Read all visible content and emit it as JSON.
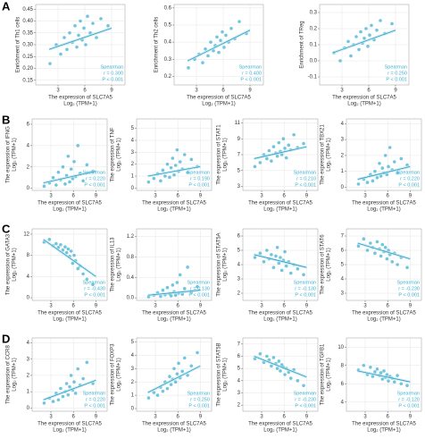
{
  "panel_labels": [
    "A",
    "B",
    "C",
    "D"
  ],
  "chart_data": [
    {
      "type": "scatter",
      "color": "#4db8d6",
      "ylabel": [
        "Enrichment of Th1 cells"
      ],
      "xlabel": [
        "The expression of SLC7A5",
        "Log₂ (TPM+1)"
      ],
      "annotations": [
        "Spearman",
        "r = 0.300",
        "P < 0.001"
      ],
      "grid": true,
      "xlim": [
        0.5,
        10.5
      ],
      "xticks": [
        3,
        6,
        9
      ],
      "ylim": [
        0.13,
        0.47
      ],
      "yticks": [
        0.15,
        {
          "value": 0.2,
          "label": "0.20"
        },
        0.25,
        {
          "value": 0.3,
          "label": "0.30"
        },
        0.35,
        {
          "value": 0.4,
          "label": "0.40"
        },
        0.45
      ],
      "x": [
        2.1,
        2.8,
        3.3,
        3.7,
        4.0,
        4.3,
        4.6,
        4.9,
        5.1,
        5.3,
        5.5,
        5.7,
        5.9,
        6.1,
        6.3,
        6.6,
        6.9,
        7.3,
        7.8,
        8.6
      ],
      "values": [
        0.22,
        0.3,
        0.26,
        0.33,
        0.28,
        0.35,
        0.31,
        0.38,
        0.29,
        0.34,
        0.4,
        0.32,
        0.37,
        0.3,
        0.42,
        0.35,
        0.39,
        0.33,
        0.41,
        0.38
      ],
      "trend": {
        "x": [
          2,
          9
        ],
        "y": [
          0.28,
          0.37
        ]
      }
    },
    {
      "type": "scatter",
      "color": "#4db8d6",
      "ylabel": [
        "Enrichment of Th2 cells"
      ],
      "xlabel": [
        "The expression of SLC7A5",
        "Log₂ (TPM+1)"
      ],
      "annotations": [
        "Spearman",
        "r = 0.400",
        "P < 0.001"
      ],
      "grid": true,
      "xlim": [
        0.5,
        10.5
      ],
      "xticks": [
        3,
        6,
        9
      ],
      "ylim": [
        0.15,
        0.62
      ],
      "yticks": [
        0.2,
        0.3,
        0.4,
        0.5,
        0.6
      ],
      "x": [
        2.1,
        2.8,
        3.3,
        3.7,
        4.0,
        4.3,
        4.6,
        4.9,
        5.1,
        5.3,
        5.5,
        5.7,
        5.9,
        6.1,
        6.3,
        6.6,
        6.9,
        7.3,
        7.8,
        8.6
      ],
      "values": [
        0.25,
        0.3,
        0.33,
        0.28,
        0.36,
        0.32,
        0.4,
        0.35,
        0.38,
        0.43,
        0.34,
        0.41,
        0.46,
        0.37,
        0.44,
        0.4,
        0.48,
        0.42,
        0.52,
        0.45
      ],
      "trend": {
        "x": [
          2,
          9
        ],
        "y": [
          0.29,
          0.47
        ]
      }
    },
    {
      "type": "scatter",
      "color": "#4db8d6",
      "ylabel": [
        "Enrichment of TReg"
      ],
      "xlabel": [
        "The expression of SLC7A5",
        "Log₂ (TPM+1)"
      ],
      "annotations": [
        "Spearman",
        "r = 0.250",
        "P < 0.001"
      ],
      "grid": true,
      "xlim": [
        0.5,
        10.5
      ],
      "xticks": [
        3,
        6,
        9
      ],
      "ylim": [
        -0.15,
        0.35
      ],
      "yticks": [
        -0.1,
        {
          "value": 0,
          "label": "0.0"
        },
        0.1,
        0.2,
        0.3
      ],
      "x": [
        2.1,
        2.8,
        3.3,
        3.7,
        4.0,
        4.3,
        4.6,
        4.9,
        5.1,
        5.3,
        5.5,
        5.7,
        5.9,
        6.1,
        6.3,
        6.6,
        6.9,
        7.3,
        7.8,
        8.6
      ],
      "values": [
        0.05,
        0.0,
        0.08,
        0.12,
        0.03,
        0.1,
        0.15,
        0.07,
        0.18,
        0.11,
        0.14,
        0.2,
        0.09,
        0.16,
        0.22,
        0.13,
        0.19,
        0.25,
        0.17,
        0.23
      ],
      "trend": {
        "x": [
          2,
          9
        ],
        "y": [
          0.05,
          0.19
        ]
      }
    },
    {
      "type": "scatter",
      "color": "#4db8d6",
      "ylabel": [
        "The expression of IFNG",
        "Log₂ (TPM+1)"
      ],
      "xlabel": [
        "The expression of SLC7A5",
        "Log₂ (TPM+1)"
      ],
      "annotations": [
        "Spearman",
        "r = 0.220",
        "P < 0.001"
      ],
      "grid": true,
      "xlim": [
        0.5,
        10.5
      ],
      "xticks": [
        3,
        6,
        9
      ],
      "ylim": [
        -0.2,
        6.5
      ],
      "yticks": [
        0,
        2,
        4,
        6
      ],
      "x": [
        2.1,
        2.8,
        3.3,
        3.7,
        4.0,
        4.3,
        4.6,
        4.9,
        5.1,
        5.3,
        5.5,
        5.7,
        5.9,
        6.1,
        6.3,
        6.6,
        6.9,
        7.3,
        7.8,
        8.6
      ],
      "values": [
        0.2,
        0.5,
        1.0,
        0.3,
        1.5,
        0.8,
        2.0,
        0.4,
        1.2,
        3.0,
        0.6,
        1.8,
        0.9,
        2.5,
        1.1,
        4.0,
        1.4,
        0.7,
        2.2,
        1.6
      ],
      "trend": {
        "x": [
          2,
          9
        ],
        "y": [
          0.5,
          1.6
        ]
      }
    },
    {
      "type": "scatter",
      "color": "#4db8d6",
      "ylabel": [
        "The expression of TNF",
        "Log₂ (TPM+1)"
      ],
      "xlabel": [
        "The expression of SLC7A5",
        "Log₂ (TPM+1)"
      ],
      "annotations": [
        "Spearman",
        "r = 0.190",
        "P < 0.001"
      ],
      "grid": true,
      "xlim": [
        0.5,
        10.5
      ],
      "xticks": [
        3,
        6,
        9
      ],
      "ylim": [
        -0.2,
        5.8
      ],
      "yticks": [
        0,
        1,
        2,
        3,
        4,
        5
      ],
      "x": [
        2.1,
        2.8,
        3.3,
        3.7,
        4.0,
        4.3,
        4.6,
        4.9,
        5.1,
        5.3,
        5.5,
        5.7,
        5.9,
        6.1,
        6.3,
        6.6,
        6.9,
        7.3,
        7.8,
        8.6
      ],
      "values": [
        0.5,
        0.8,
        1.2,
        0.6,
        1.5,
        1.0,
        2.0,
        0.9,
        1.7,
        2.5,
        1.1,
        1.9,
        3.2,
        1.4,
        2.2,
        1.6,
        2.8,
        1.3,
        2.4,
        1.8
      ],
      "trend": {
        "x": [
          2,
          9
        ],
        "y": [
          1.0,
          1.8
        ]
      }
    },
    {
      "type": "scatter",
      "color": "#4db8d6",
      "ylabel": [
        "The expression of STAT1",
        "Log₂ (TPM+1)"
      ],
      "xlabel": [
        "The expression of SLC7A5",
        "Log₂ (TPM+1)"
      ],
      "annotations": [
        "Spearman",
        "r = 0.210",
        "P < 0.001"
      ],
      "grid": true,
      "xlim": [
        0.5,
        10.5
      ],
      "xticks": [
        3,
        6,
        9
      ],
      "ylim": [
        2.5,
        11.5
      ],
      "yticks": [
        3,
        5,
        7,
        9,
        11
      ],
      "x": [
        2.1,
        2.8,
        3.3,
        3.7,
        4.0,
        4.3,
        4.6,
        4.9,
        5.1,
        5.3,
        5.5,
        5.7,
        5.9,
        6.1,
        6.3,
        6.6,
        6.9,
        7.3,
        7.8,
        8.6
      ],
      "values": [
        5.5,
        6.0,
        7.0,
        6.5,
        7.5,
        6.2,
        8.0,
        7.2,
        6.8,
        8.5,
        7.4,
        7.0,
        9.0,
        7.8,
        6.6,
        8.2,
        7.6,
        9.5,
        7.9,
        8.4
      ],
      "trend": {
        "x": [
          2,
          9
        ],
        "y": [
          6.5,
          8.0
        ]
      }
    },
    {
      "type": "scatter",
      "color": "#4db8d6",
      "ylabel": [
        "The expression of TBX21",
        "Log₂ (TPM+1)"
      ],
      "xlabel": [
        "The expression of SLC7A5",
        "Log₂ (TPM+1)"
      ],
      "annotations": [
        "Spearman",
        "r = 0.220",
        "P < 0.001"
      ],
      "grid": true,
      "xlim": [
        0.5,
        10.5
      ],
      "xticks": [
        3,
        6,
        9
      ],
      "ylim": [
        -0.2,
        4.3
      ],
      "yticks": [
        0,
        1,
        2,
        3,
        4
      ],
      "x": [
        2.1,
        2.8,
        3.3,
        3.7,
        4.0,
        4.3,
        4.6,
        4.9,
        5.1,
        5.3,
        5.5,
        5.7,
        5.9,
        6.1,
        6.3,
        6.6,
        6.9,
        7.3,
        7.8,
        8.6
      ],
      "values": [
        0.2,
        0.5,
        0.3,
        0.8,
        0.4,
        1.0,
        0.6,
        1.5,
        0.7,
        1.2,
        0.9,
        2.0,
        0.8,
        1.3,
        2.5,
        1.1,
        1.6,
        0.9,
        1.8,
        1.4
      ],
      "trend": {
        "x": [
          2,
          9
        ],
        "y": [
          0.5,
          1.3
        ]
      }
    },
    {
      "type": "scatter",
      "color": "#4db8d6",
      "ylabel": [
        "The expression of GATA3",
        "Log₂ (TPM+1)"
      ],
      "xlabel": [
        "The expression of SLC7A5",
        "Log₂ (TPM+1)"
      ],
      "annotations": [
        "Spearman",
        "r = -0.430",
        "P < 0.001"
      ],
      "grid": true,
      "xlim": [
        0.5,
        10.5
      ],
      "xticks": [
        3,
        6,
        9
      ],
      "ylim": [
        -0.5,
        13
      ],
      "yticks": [
        0,
        4,
        8,
        12
      ],
      "x": [
        2.1,
        2.8,
        3.3,
        3.7,
        4.0,
        4.3,
        4.6,
        4.9,
        5.1,
        5.3,
        5.5,
        5.7,
        5.9,
        6.1,
        6.3,
        6.6,
        6.9,
        7.3,
        7.8,
        8.6
      ],
      "values": [
        10.5,
        11.0,
        9.8,
        10.2,
        9.5,
        10.0,
        9.0,
        9.6,
        8.5,
        9.2,
        7.8,
        8.8,
        6.5,
        8.0,
        7.0,
        5.5,
        6.0,
        4.5,
        3.5,
        2.5
      ],
      "trend": {
        "x": [
          2,
          9
        ],
        "y": [
          11,
          4
        ]
      }
    },
    {
      "type": "scatter",
      "color": "#4db8d6",
      "ylabel": [
        "The expression of IL13",
        "Log₂ (TPM+1)"
      ],
      "xlabel": [
        "The expression of SLC7A5",
        "Log₂ (TPM+1)"
      ],
      "annotations": [
        "Spearman",
        "r = 0.130",
        "P < 0.001"
      ],
      "grid": true,
      "xlim": [
        0.5,
        10.5
      ],
      "xticks": [
        3,
        6,
        9
      ],
      "ylim": [
        -0.05,
        1.35
      ],
      "yticks": [
        {
          "value": 0,
          "label": "0.0"
        },
        0.4,
        0.8,
        1.2
      ],
      "x": [
        2.1,
        2.8,
        3.3,
        3.7,
        4.0,
        4.3,
        4.6,
        4.9,
        5.1,
        5.3,
        5.5,
        5.7,
        5.9,
        6.1,
        6.3,
        6.6,
        6.9,
        7.3,
        7.8,
        8.6
      ],
      "values": [
        0.02,
        0.05,
        0.1,
        0.03,
        0.15,
        0.06,
        0.2,
        0.08,
        0.04,
        0.25,
        0.12,
        0.05,
        0.3,
        0.09,
        0.45,
        0.07,
        0.18,
        0.6,
        0.11,
        0.22
      ],
      "trend": {
        "x": [
          2,
          9
        ],
        "y": [
          0.05,
          0.15
        ]
      }
    },
    {
      "type": "scatter",
      "color": "#4db8d6",
      "ylabel": [
        "The expression of STAT5A",
        "Log₂ (TPM+1)"
      ],
      "xlabel": [
        "The expression of SLC7A5",
        "Log₂ (TPM+1)"
      ],
      "annotations": [
        "Spearman",
        "r = -0.130",
        "P < 0.001"
      ],
      "grid": true,
      "xlim": [
        0.5,
        10.5
      ],
      "xticks": [
        3,
        6,
        9
      ],
      "ylim": [
        1.5,
        6.5
      ],
      "yticks": [
        2,
        3,
        4,
        5,
        6
      ],
      "x": [
        2.1,
        2.8,
        3.3,
        3.7,
        4.0,
        4.3,
        4.6,
        4.9,
        5.1,
        5.3,
        5.5,
        5.7,
        5.9,
        6.1,
        6.3,
        6.6,
        6.9,
        7.3,
        7.8,
        8.6
      ],
      "values": [
        4.5,
        4.8,
        4.2,
        5.0,
        4.4,
        4.7,
        3.8,
        4.6,
        5.2,
        4.1,
        4.5,
        3.6,
        4.3,
        4.9,
        3.9,
        4.2,
        3.4,
        4.0,
        3.7,
        3.3
      ],
      "trend": {
        "x": [
          2,
          9
        ],
        "y": [
          4.7,
          3.8
        ]
      }
    },
    {
      "type": "scatter",
      "color": "#4db8d6",
      "ylabel": [
        "The expression of STAT6",
        "Log₂ (TPM+1)"
      ],
      "xlabel": [
        "The expression of SLC7A5",
        "Log₂ (TPM+1)"
      ],
      "annotations": [
        "Spearman",
        "r = -0.230",
        "P < 0.001"
      ],
      "grid": true,
      "xlim": [
        0.5,
        10.5
      ],
      "xticks": [
        3,
        6,
        9
      ],
      "ylim": [
        2.5,
        7.5
      ],
      "yticks": [
        3,
        4,
        5,
        6,
        7
      ],
      "x": [
        2.1,
        2.8,
        3.3,
        3.7,
        4.0,
        4.3,
        4.6,
        4.9,
        5.1,
        5.3,
        5.5,
        5.7,
        5.9,
        6.1,
        6.3,
        6.6,
        6.9,
        7.3,
        7.8,
        8.6
      ],
      "values": [
        6.3,
        6.8,
        6.0,
        6.5,
        6.2,
        5.8,
        6.6,
        6.1,
        5.6,
        6.4,
        5.9,
        6.2,
        5.4,
        6.0,
        5.7,
        5.2,
        5.8,
        5.0,
        5.5,
        4.8
      ],
      "trend": {
        "x": [
          2,
          9
        ],
        "y": [
          6.5,
          5.4
        ]
      }
    },
    {
      "type": "scatter",
      "color": "#4db8d6",
      "ylabel": [
        "The expression of CCR8",
        "Log₂ (TPM+1)"
      ],
      "xlabel": [
        "The expression of SLC7A5",
        "Log₂ (TPM+1)"
      ],
      "annotations": [
        "Spearman",
        "r = 0.220",
        "P < 0.001"
      ],
      "grid": true,
      "xlim": [
        0.5,
        10.5
      ],
      "xticks": [
        3,
        6,
        9
      ],
      "ylim": [
        -0.2,
        4.3
      ],
      "yticks": [
        0,
        1,
        2,
        3,
        4
      ],
      "x": [
        2.1,
        2.8,
        3.3,
        3.7,
        4.0,
        4.3,
        4.6,
        4.9,
        5.1,
        5.3,
        5.5,
        5.7,
        5.9,
        6.1,
        6.3,
        6.6,
        6.9,
        7.3,
        7.8,
        8.6
      ],
      "values": [
        0.3,
        0.6,
        0.4,
        0.9,
        0.5,
        1.2,
        0.7,
        1.0,
        1.5,
        0.8,
        1.3,
        2.0,
        1.1,
        1.6,
        0.9,
        2.4,
        1.4,
        1.8,
        2.8,
        1.5
      ],
      "trend": {
        "x": [
          2,
          9
        ],
        "y": [
          0.5,
          1.7
        ]
      }
    },
    {
      "type": "scatter",
      "color": "#4db8d6",
      "ylabel": [
        "The expression of FOXP3",
        "Log₂ (TPM+1)"
      ],
      "xlabel": [
        "The expression of SLC7A5",
        "Log₂ (TPM+1)"
      ],
      "annotations": [
        "Spearman",
        "r = 0.250",
        "P < 0.001"
      ],
      "grid": true,
      "xlim": [
        0.5,
        10.5
      ],
      "xticks": [
        3,
        6,
        9
      ],
      "ylim": [
        -0.2,
        5.3
      ],
      "yticks": [
        0,
        1,
        2,
        3,
        4,
        5
      ],
      "x": [
        2.1,
        2.8,
        3.3,
        3.7,
        4.0,
        4.3,
        4.6,
        4.9,
        5.1,
        5.3,
        5.5,
        5.7,
        5.9,
        6.1,
        6.3,
        6.6,
        6.9,
        7.3,
        7.8,
        8.6
      ],
      "values": [
        0.8,
        1.2,
        1.0,
        1.6,
        1.3,
        2.0,
        1.5,
        2.4,
        1.8,
        2.2,
        3.0,
        2.0,
        2.6,
        3.4,
        2.3,
        2.8,
        3.8,
        2.5,
        3.2,
        4.2
      ],
      "trend": {
        "x": [
          2,
          9
        ],
        "y": [
          1.2,
          3.2
        ]
      }
    },
    {
      "type": "scatter",
      "color": "#4db8d6",
      "ylabel": [
        "The expression of STAT5B",
        "Log₂ (TPM+1)"
      ],
      "xlabel": [
        "The expression of SLC7A5",
        "Log₂ (TPM+1)"
      ],
      "annotations": [
        "Spearman",
        "r = -0.230",
        "P < 0.001"
      ],
      "grid": true,
      "xlim": [
        0.5,
        10.5
      ],
      "xticks": [
        3,
        6,
        9
      ],
      "ylim": [
        1.5,
        7.5
      ],
      "yticks": [
        2,
        3,
        4,
        5,
        6,
        7
      ],
      "x": [
        2.1,
        2.8,
        3.3,
        3.7,
        4.0,
        4.3,
        4.6,
        4.9,
        5.1,
        5.3,
        5.5,
        5.7,
        5.9,
        6.1,
        6.3,
        6.6,
        6.9,
        7.3,
        7.8,
        8.6
      ],
      "values": [
        5.8,
        6.2,
        5.5,
        6.0,
        5.7,
        5.2,
        5.9,
        5.4,
        5.0,
        5.6,
        4.8,
        5.3,
        5.1,
        4.5,
        5.0,
        4.7,
        4.2,
        4.9,
        4.0,
        3.6
      ],
      "trend": {
        "x": [
          2,
          9
        ],
        "y": [
          6.0,
          4.3
        ]
      }
    },
    {
      "type": "scatter",
      "color": "#4db8d6",
      "ylabel": [
        "The expression of TGFB1",
        "Log₂ (TPM+1)"
      ],
      "xlabel": [
        "The expression of SLC7A5",
        "Log₂ (TPM+1)"
      ],
      "annotations": [
        "Spearman",
        "r = -0.120",
        "P < 0.001"
      ],
      "grid": true,
      "xlim": [
        0.5,
        10.5
      ],
      "xticks": [
        3,
        6,
        9
      ],
      "ylim": [
        3,
        11
      ],
      "yticks": [
        4,
        6,
        8,
        10
      ],
      "x": [
        2.1,
        2.8,
        3.3,
        3.7,
        4.0,
        4.3,
        4.6,
        4.9,
        5.1,
        5.3,
        5.5,
        5.7,
        5.9,
        6.1,
        6.3,
        6.6,
        6.9,
        7.3,
        7.8,
        8.6
      ],
      "values": [
        7.5,
        8.0,
        7.0,
        7.8,
        6.8,
        7.3,
        7.6,
        6.9,
        7.2,
        6.5,
        7.4,
        6.7,
        7.0,
        6.3,
        6.8,
        6.6,
        6.2,
        6.9,
        6.0,
        5.8
      ],
      "trend": {
        "x": [
          2,
          9
        ],
        "y": [
          7.4,
          6.2
        ]
      }
    }
  ]
}
